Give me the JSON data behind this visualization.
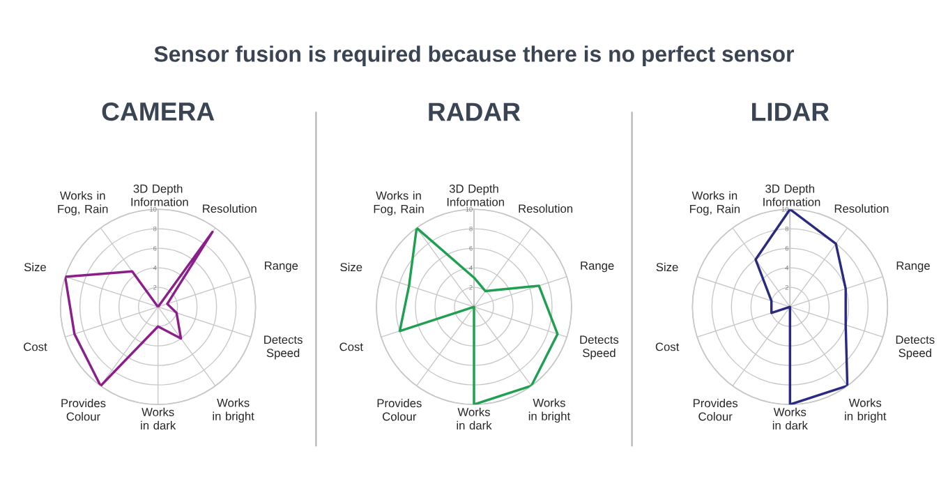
{
  "chart_data": [
    {
      "type": "radar",
      "title": "CAMERA",
      "annotations": [
        "Sensor fusion is required because there is no perfect sensor"
      ],
      "categories": [
        "3D Depth Information",
        "Resolution",
        "Range",
        "Detects Speed",
        "Works in bright",
        "Works in dark",
        "Provides Colour",
        "Cost",
        "Size",
        "Works in Fog, Rain"
      ],
      "series": [
        {
          "color": "#8b1e8b",
          "values": [
            0,
            9.5,
            1,
            2,
            4,
            2,
            10,
            9,
            10,
            4.5
          ]
        }
      ],
      "ylim": [
        0,
        10
      ],
      "yticks": [
        2,
        4,
        6,
        8,
        10
      ],
      "grid": true
    },
    {
      "type": "radar",
      "title": "RADAR",
      "categories": [
        "3D Depth Information",
        "Resolution",
        "Range",
        "Detects Speed",
        "Works in bright",
        "Works in dark",
        "Provides Colour",
        "Cost",
        "Size",
        "Works in Fog, Rain"
      ],
      "series": [
        {
          "color": "#1fa050",
          "values": [
            3,
            2,
            7,
            9,
            10,
            10,
            0,
            8,
            7,
            10
          ]
        }
      ],
      "ylim": [
        0,
        10
      ],
      "yticks": [
        2,
        4,
        6,
        8,
        10
      ],
      "grid": true
    },
    {
      "type": "radar",
      "title": "LIDAR",
      "categories": [
        "3D Depth Information",
        "Resolution",
        "Range",
        "Detects Speed",
        "Works in bright",
        "Works in dark",
        "Provides Colour",
        "Cost",
        "Size",
        "Works in Fog, Rain"
      ],
      "series": [
        {
          "color": "#2a2a80",
          "values": [
            10,
            8,
            6,
            6,
            10,
            10,
            0,
            2,
            2,
            6
          ]
        }
      ],
      "ylim": [
        0,
        10
      ],
      "yticks": [
        2,
        4,
        6,
        8,
        10
      ],
      "grid": true
    }
  ]
}
